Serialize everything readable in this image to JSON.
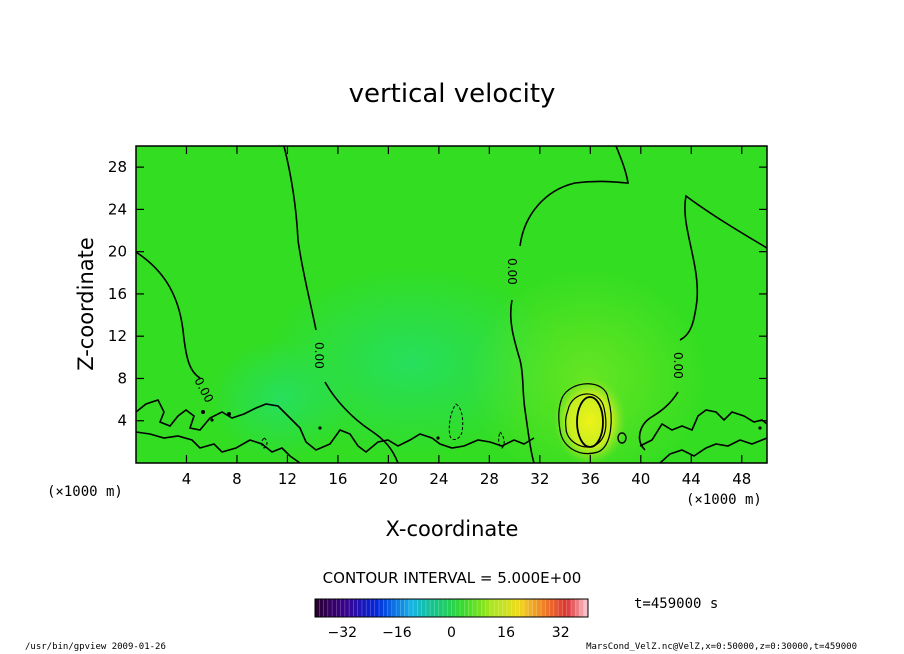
{
  "chart_data": {
    "type": "heatmap",
    "title": "vertical velocity",
    "xlabel": "X-coordinate",
    "ylabel": "Z-coordinate",
    "x_unit_left": "(×1000 m)",
    "x_unit_right": "(×1000 m)",
    "xlim": [
      0,
      50
    ],
    "ylim": [
      0,
      30
    ],
    "xticks": [
      4,
      8,
      12,
      16,
      20,
      24,
      28,
      32,
      36,
      40,
      44,
      48
    ],
    "yticks": [
      4,
      8,
      12,
      16,
      20,
      24,
      28
    ],
    "contour_interval_text": "CONTOUR INTERVAL = 5.000E+00",
    "contour_label": "0.00",
    "time_label": "t=459000 s",
    "colorbar": {
      "min": -40,
      "max": 40,
      "ticks": [
        -32,
        -16,
        0,
        16,
        32
      ]
    },
    "features": [
      {
        "x": 35.8,
        "z": 3.8,
        "value": 15,
        "note": "updraft core"
      },
      {
        "x": 22,
        "z": 10,
        "value": -4
      },
      {
        "x": 36,
        "z": 8,
        "value": 4
      }
    ],
    "colors": {
      "background_field": "#33dd22",
      "positive_core": "#d8f020",
      "negative_region": "#20dd66"
    }
  },
  "footer": {
    "left": "/usr/bin/gpview  2009-01-26",
    "right": "MarsCond_VelZ.nc@VelZ,x=0:50000,z=0:30000,t=459000"
  }
}
